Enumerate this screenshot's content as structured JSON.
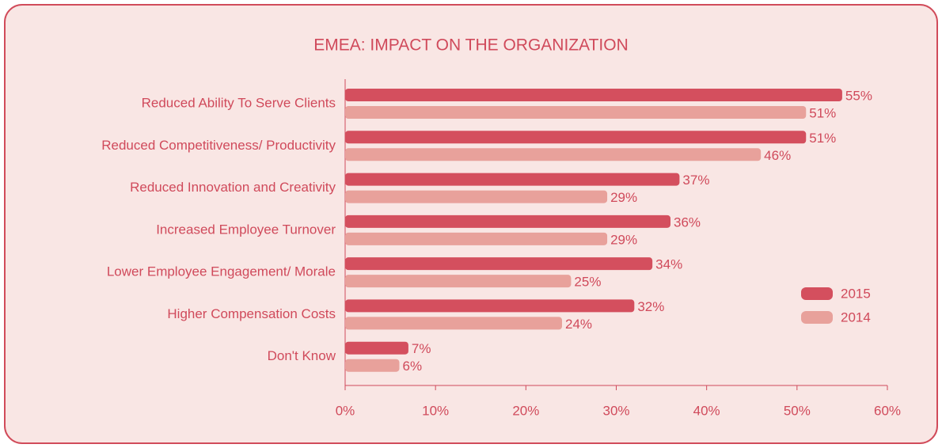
{
  "chart_data": {
    "type": "hbar",
    "title": "EMEA: IMPACT ON THE ORGANIZATION",
    "categories": [
      "Reduced Ability To Serve Clients",
      "Reduced Competitiveness/ Productivity",
      "Reduced Innovation and Creativity",
      "Increased Employee Turnover",
      "Lower Employee Engagement/ Morale",
      "Higher Compensation Costs",
      "Don't Know"
    ],
    "series": [
      {
        "name": "2015",
        "color": "#d44f5e",
        "values": [
          55,
          51,
          37,
          36,
          34,
          32,
          7
        ],
        "value_labels": [
          "55%",
          "51%",
          "37%",
          "36%",
          "34%",
          "32%",
          "7%"
        ]
      },
      {
        "name": "2014",
        "color": "#e8a19b",
        "values": [
          51,
          46,
          29,
          29,
          25,
          24,
          6
        ],
        "value_labels": [
          "51%",
          "46%",
          "29%",
          "29%",
          "25%",
          "24%",
          "6%"
        ]
      }
    ],
    "xlim": [
      0,
      60
    ],
    "xticks": [
      {
        "value": 0,
        "label": "0%"
      },
      {
        "value": 10,
        "label": "10%"
      },
      {
        "value": 20,
        "label": "20%"
      },
      {
        "value": 30,
        "label": "30%"
      },
      {
        "value": 40,
        "label": "40%"
      },
      {
        "value": 50,
        "label": "50%"
      },
      {
        "value": 60,
        "label": "60%"
      }
    ],
    "grid": false,
    "legend": "right"
  }
}
